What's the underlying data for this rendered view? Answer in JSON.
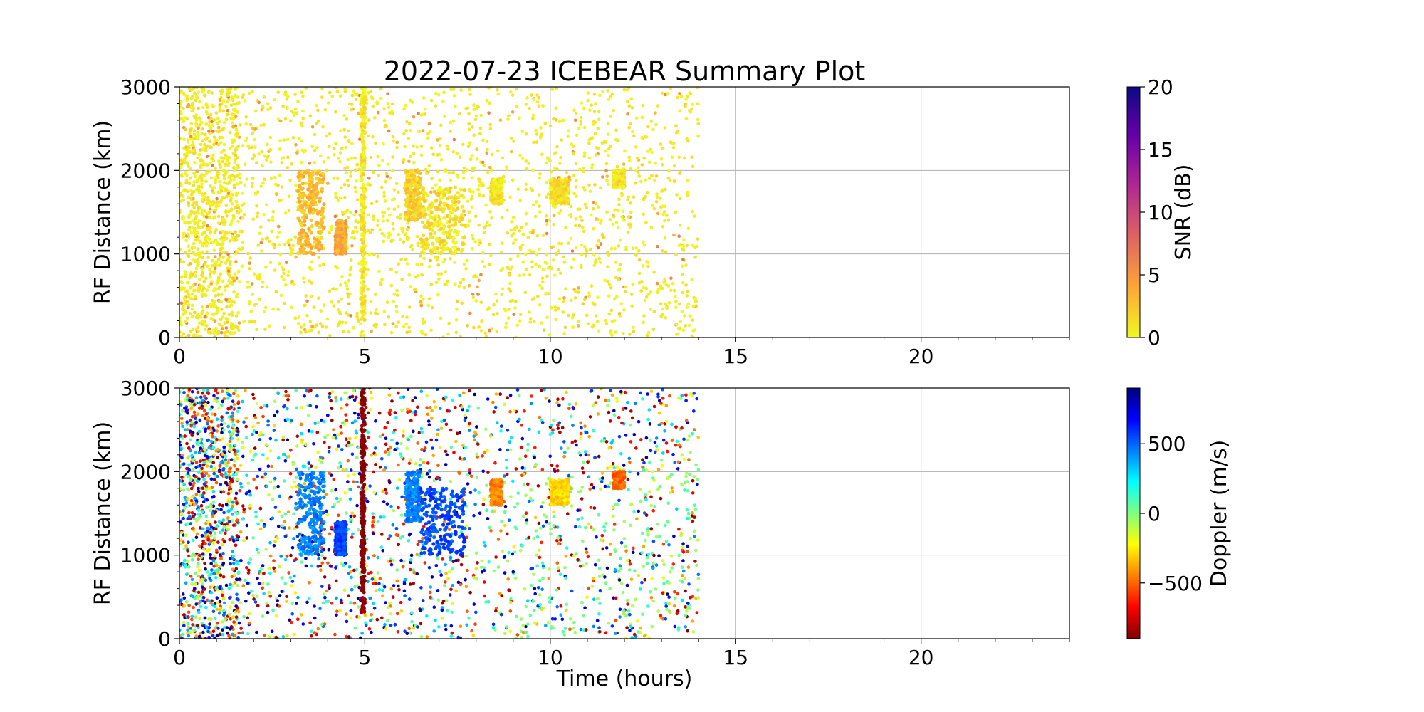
{
  "chart_data": [
    {
      "type": "scatter",
      "title": "2022-07-23 ICEBEAR Summary Plot",
      "xlabel": "",
      "ylabel": "RF Distance (km)",
      "xlim": [
        0,
        24
      ],
      "ylim": [
        0,
        3000
      ],
      "xticks": [
        "0",
        "5",
        "10",
        "15",
        "20"
      ],
      "yticks": [
        "0",
        "1000",
        "2000",
        "3000"
      ],
      "grid": true,
      "data_extent_x": [
        0,
        14
      ],
      "colorbar": {
        "label": "SNR (dB)",
        "range": [
          0,
          20
        ],
        "ticks": [
          "0",
          "5",
          "10",
          "15",
          "20"
        ],
        "colormap": "plasma_r",
        "colors": [
          "#f0f921",
          "#fca636",
          "#e16462",
          "#b12a90",
          "#6a00a8",
          "#0d0887"
        ]
      },
      "features": [
        {
          "x": [
            3.2,
            3.9
          ],
          "y": [
            1000,
            2000
          ],
          "snr_db": 3
        },
        {
          "x": [
            4.2,
            4.5
          ],
          "y": [
            1000,
            1400
          ],
          "snr_db": 4
        },
        {
          "x": [
            4.9,
            5.0
          ],
          "y": [
            200,
            3000
          ],
          "snr_db": 1
        },
        {
          "x": [
            6.1,
            6.5
          ],
          "y": [
            1400,
            2000
          ],
          "snr_db": 2
        },
        {
          "x": [
            6.5,
            7.7
          ],
          "y": [
            1000,
            1800
          ],
          "snr_db": 1
        },
        {
          "x": [
            8.4,
            8.7
          ],
          "y": [
            1600,
            1900
          ],
          "snr_db": 1
        },
        {
          "x": [
            10.0,
            10.5
          ],
          "y": [
            1600,
            1900
          ],
          "snr_db": 1
        },
        {
          "x": [
            11.7,
            12.0
          ],
          "y": [
            1800,
            2000
          ],
          "snr_db": 1
        }
      ]
    },
    {
      "type": "scatter",
      "title": "",
      "xlabel": "Time (hours)",
      "ylabel": "RF Distance (km)",
      "xlim": [
        0,
        24
      ],
      "ylim": [
        0,
        3000
      ],
      "xticks": [
        "0",
        "5",
        "10",
        "15",
        "20"
      ],
      "yticks": [
        "0",
        "1000",
        "2000",
        "3000"
      ],
      "grid": true,
      "data_extent_x": [
        0,
        14
      ],
      "colorbar": {
        "label": "Doppler (m/s)",
        "range": [
          -900,
          900
        ],
        "ticks": [
          "−500",
          "0",
          "500"
        ],
        "tick_values": [
          -500,
          0,
          500
        ],
        "colormap": "jet_r",
        "colors": [
          "#800000",
          "#ff0000",
          "#ff8000",
          "#ffff00",
          "#80ff80",
          "#00ffff",
          "#0080ff",
          "#0000ff",
          "#000080"
        ]
      },
      "features": [
        {
          "x": [
            3.2,
            3.9
          ],
          "y": [
            1000,
            2000
          ],
          "doppler_ms": 450
        },
        {
          "x": [
            4.2,
            4.5
          ],
          "y": [
            1000,
            1400
          ],
          "doppler_ms": 550
        },
        {
          "x": [
            4.9,
            5.0
          ],
          "y": [
            300,
            3000
          ],
          "doppler_ms": -900
        },
        {
          "x": [
            6.1,
            6.5
          ],
          "y": [
            1400,
            2000
          ],
          "doppler_ms": 450
        },
        {
          "x": [
            6.5,
            7.7
          ],
          "y": [
            1000,
            1800
          ],
          "doppler_ms": 550
        },
        {
          "x": [
            8.4,
            8.7
          ],
          "y": [
            1600,
            1900
          ],
          "doppler_ms": -450
        },
        {
          "x": [
            10.0,
            10.5
          ],
          "y": [
            1600,
            1900
          ],
          "doppler_ms": -300
        },
        {
          "x": [
            11.7,
            12.0
          ],
          "y": [
            1800,
            2000
          ],
          "doppler_ms": -500
        }
      ]
    }
  ]
}
